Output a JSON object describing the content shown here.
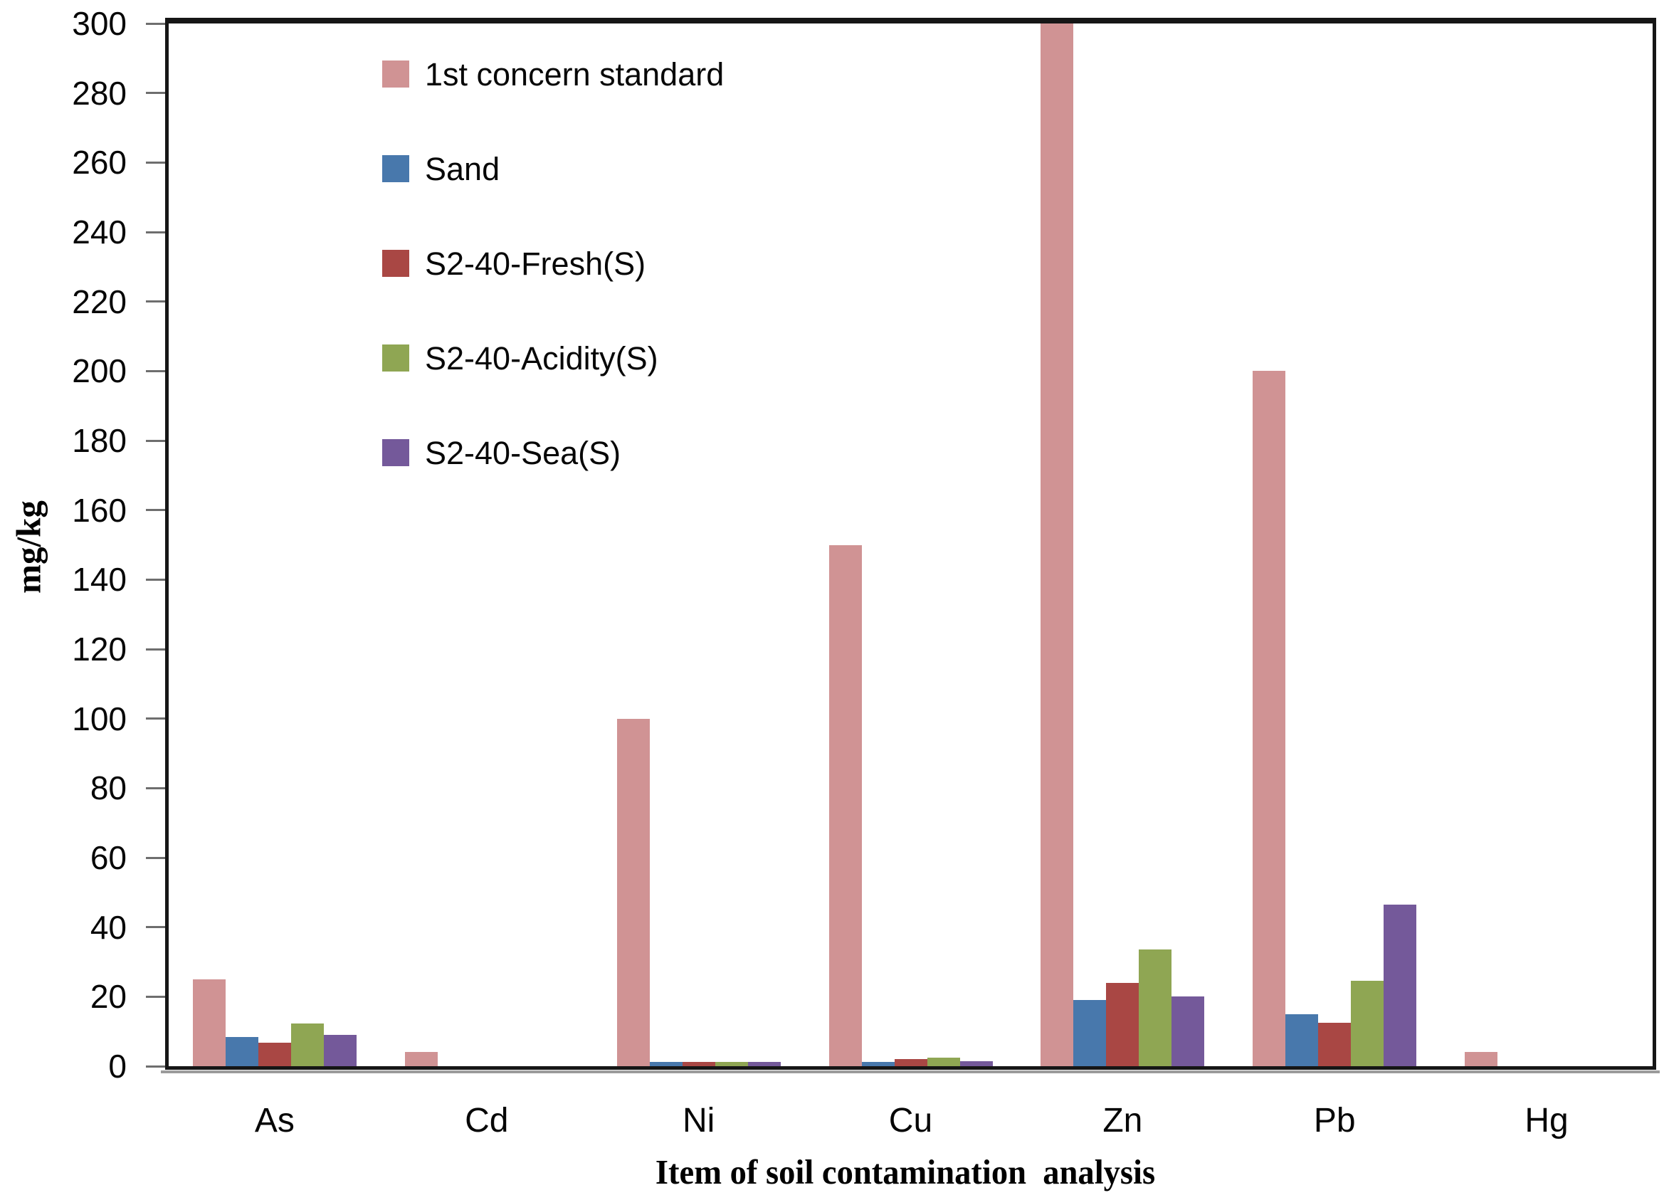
{
  "chart_data": {
    "type": "bar",
    "title": "",
    "xlabel": "Item of soil contamination  analysis",
    "ylabel": "mg/kg",
    "categories": [
      "As",
      "Cd",
      "Ni",
      "Cu",
      "Zn",
      "Pb",
      "Hg"
    ],
    "series": [
      {
        "name": "1st concern standard",
        "color": "#D09394",
        "values": [
          25,
          4,
          100,
          150,
          300,
          200,
          4
        ]
      },
      {
        "name": "Sand",
        "color": "#4878AC",
        "values": [
          8.3,
          0,
          1.3,
          1.3,
          19,
          15,
          0
        ]
      },
      {
        "name": "S2-40-Fresh(S)",
        "color": "#A94744",
        "values": [
          6.8,
          0,
          1.3,
          2,
          24,
          12.5,
          0
        ]
      },
      {
        "name": "S2-40-Acidity(S)",
        "color": "#8FA653",
        "values": [
          12.3,
          0,
          1.3,
          2.5,
          33.5,
          24.5,
          0
        ]
      },
      {
        "name": "S2-40-Sea(S)",
        "color": "#74599A",
        "values": [
          9,
          0,
          1.3,
          1.4,
          20,
          46.5,
          0
        ]
      }
    ],
    "ylim": [
      0,
      300
    ],
    "ytick_step": 20,
    "yticks": [
      0,
      20,
      40,
      60,
      80,
      100,
      120,
      140,
      160,
      180,
      200,
      220,
      240,
      260,
      280,
      300
    ],
    "grid": false,
    "legend_position": "upper-left-inside",
    "axis_color": "#161616",
    "tick_color": "#6e6e6e",
    "background": "#ffffff"
  }
}
